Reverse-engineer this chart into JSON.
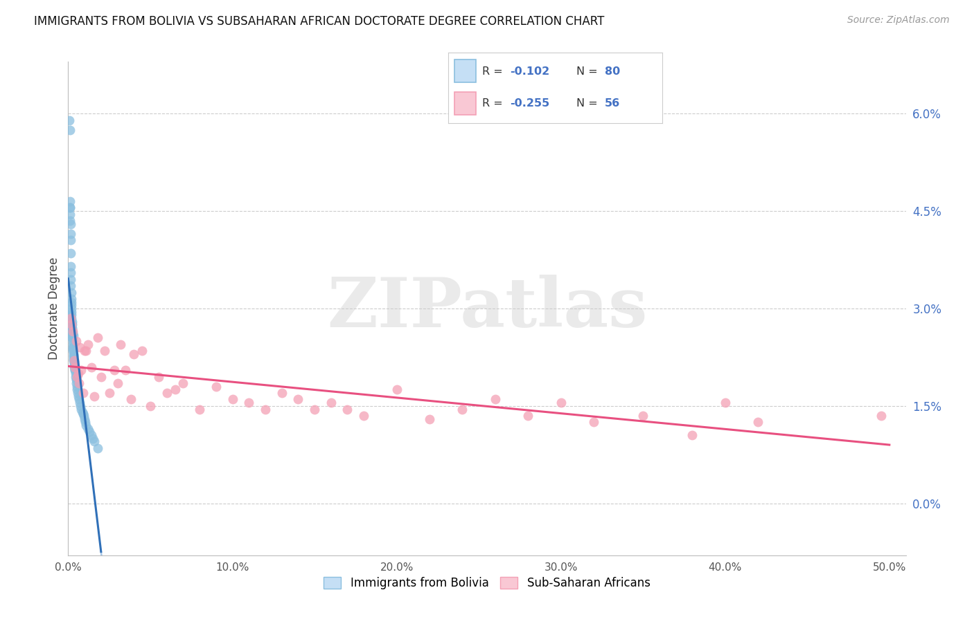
{
  "title": "IMMIGRANTS FROM BOLIVIA VS SUBSAHARAN AFRICAN DOCTORATE DEGREE CORRELATION CHART",
  "source": "Source: ZipAtlas.com",
  "ylabel": "Doctorate Degree",
  "ytick_values": [
    0.0,
    1.5,
    3.0,
    4.5,
    6.0
  ],
  "xmin": 0.0,
  "xmax": 50.0,
  "ymin": -0.8,
  "ymax": 6.8,
  "color_bolivia": "#8bbfdf",
  "color_subsaharan": "#f4a0b5",
  "color_bolivia_line": "#3070b8",
  "color_subsaharan_line": "#e85080",
  "color_dashed": "#a8c8e8",
  "legend_label1": "Immigrants from Bolivia",
  "legend_label2": "Sub-Saharan Africans",
  "watermark": "ZIPatlas",
  "bolivia_x": [
    0.08,
    0.09,
    0.1,
    0.1,
    0.11,
    0.12,
    0.12,
    0.13,
    0.14,
    0.14,
    0.15,
    0.15,
    0.16,
    0.16,
    0.17,
    0.18,
    0.18,
    0.19,
    0.19,
    0.2,
    0.2,
    0.21,
    0.21,
    0.22,
    0.22,
    0.23,
    0.24,
    0.24,
    0.25,
    0.25,
    0.26,
    0.27,
    0.28,
    0.28,
    0.29,
    0.3,
    0.31,
    0.32,
    0.33,
    0.34,
    0.35,
    0.36,
    0.37,
    0.38,
    0.4,
    0.41,
    0.43,
    0.45,
    0.47,
    0.5,
    0.52,
    0.55,
    0.58,
    0.6,
    0.65,
    0.7,
    0.75,
    0.8,
    0.85,
    0.9,
    0.95,
    1.0,
    1.05,
    1.1,
    1.2,
    1.3,
    1.4,
    1.5,
    1.6,
    1.8,
    0.1,
    0.12,
    0.14,
    0.15,
    0.18,
    0.2,
    0.22,
    0.25,
    0.28,
    0.3
  ],
  "bolivia_y": [
    5.9,
    5.75,
    4.65,
    4.55,
    4.55,
    4.45,
    4.35,
    4.3,
    4.15,
    4.05,
    3.85,
    3.65,
    3.55,
    3.45,
    3.35,
    3.25,
    3.15,
    3.1,
    3.05,
    3.0,
    2.95,
    2.9,
    2.85,
    2.8,
    2.75,
    2.7,
    2.65,
    2.6,
    2.55,
    2.55,
    2.5,
    2.45,
    2.4,
    2.38,
    2.35,
    2.3,
    2.28,
    2.25,
    2.22,
    2.2,
    2.18,
    2.15,
    2.12,
    2.1,
    2.05,
    2.05,
    2.0,
    1.95,
    1.9,
    1.85,
    1.8,
    1.75,
    1.7,
    1.65,
    1.6,
    1.55,
    1.5,
    1.45,
    1.4,
    1.38,
    1.35,
    1.3,
    1.25,
    1.2,
    1.15,
    1.1,
    1.05,
    1.0,
    0.95,
    0.85,
    2.9,
    2.85,
    2.82,
    2.78,
    2.75,
    2.72,
    2.68,
    2.65,
    2.62,
    2.58
  ],
  "subsaharan_x": [
    0.15,
    0.2,
    0.28,
    0.35,
    0.4,
    0.5,
    0.55,
    0.6,
    0.65,
    0.7,
    0.8,
    0.9,
    1.0,
    1.1,
    1.2,
    1.4,
    1.6,
    1.8,
    2.0,
    2.2,
    2.5,
    2.8,
    3.0,
    3.2,
    3.5,
    3.8,
    4.0,
    4.5,
    5.0,
    5.5,
    6.0,
    6.5,
    7.0,
    8.0,
    9.0,
    10.0,
    11.0,
    12.0,
    13.0,
    14.0,
    15.0,
    16.0,
    17.0,
    18.0,
    20.0,
    22.0,
    24.0,
    26.0,
    28.0,
    30.0,
    32.0,
    35.0,
    38.0,
    40.0,
    42.0,
    49.5
  ],
  "subsaharan_y": [
    2.85,
    2.75,
    2.65,
    2.2,
    2.1,
    2.5,
    1.95,
    2.0,
    1.85,
    2.4,
    2.05,
    1.7,
    2.35,
    2.35,
    2.45,
    2.1,
    1.65,
    2.55,
    1.95,
    2.35,
    1.7,
    2.05,
    1.85,
    2.45,
    2.05,
    1.6,
    2.3,
    2.35,
    1.5,
    1.95,
    1.7,
    1.75,
    1.85,
    1.45,
    1.8,
    1.6,
    1.55,
    1.45,
    1.7,
    1.6,
    1.45,
    1.55,
    1.45,
    1.35,
    1.75,
    1.3,
    1.45,
    1.6,
    1.35,
    1.55,
    1.25,
    1.35,
    1.05,
    1.55,
    1.25,
    1.35
  ],
  "bolivia_line_x0": 0.0,
  "bolivia_line_x1": 2.0,
  "subsaharan_line_x0": 0.0,
  "subsaharan_line_x1": 50.0,
  "dashed_line_x0": 2.0,
  "dashed_line_x1": 50.0
}
